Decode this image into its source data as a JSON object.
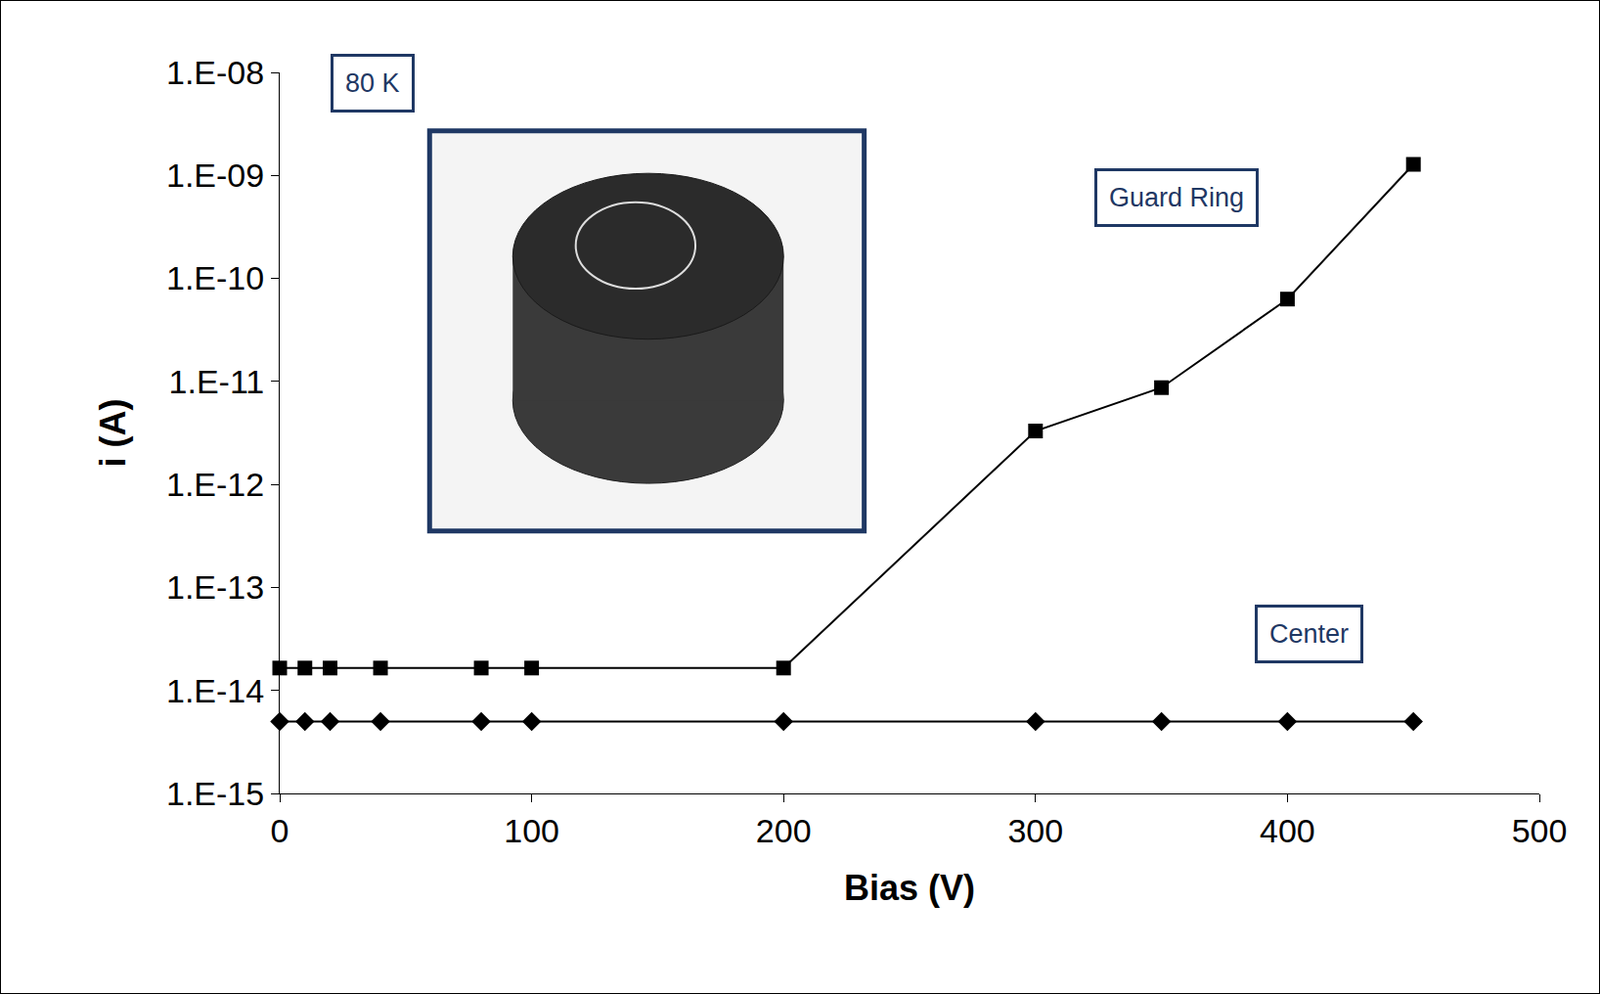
{
  "chart_data": {
    "type": "line",
    "annotations": [
      "80 K"
    ],
    "x_label": "Bias (V)",
    "y_label": "i (A)",
    "x": [
      0,
      10,
      20,
      40,
      80,
      100,
      200,
      300,
      350,
      400,
      450
    ],
    "series": [
      {
        "name": "Guard Ring",
        "color": "#000000",
        "marker": "square",
        "values": [
          1.65e-14,
          1.65e-14,
          1.65e-14,
          1.65e-14,
          1.65e-14,
          1.65e-14,
          1.65e-14,
          3.3e-12,
          8.7e-12,
          6.3e-11,
          1.28e-09
        ]
      },
      {
        "name": "Center",
        "color": "#000000",
        "marker": "diamond",
        "values": [
          5e-15,
          5e-15,
          5e-15,
          5e-15,
          5e-15,
          5e-15,
          5e-15,
          5e-15,
          5e-15,
          5e-15,
          5e-15
        ]
      }
    ],
    "xlim": [
      0,
      500
    ],
    "xticks": [
      0,
      100,
      200,
      300,
      400,
      500
    ],
    "ylim": [
      1e-15,
      1e-08
    ],
    "yticks": [
      {
        "value": 1e-15,
        "label": "1.E-15"
      },
      {
        "value": 1e-14,
        "label": "1.E-14"
      },
      {
        "value": 1e-13,
        "label": "1.E-13"
      },
      {
        "value": 1e-12,
        "label": "1.E-12"
      },
      {
        "value": 1e-11,
        "label": "1.E-11"
      },
      {
        "value": 1e-10,
        "label": "1.E-10"
      },
      {
        "value": 1e-09,
        "label": "1.E-09"
      },
      {
        "value": 1e-08,
        "label": "1.E-08"
      }
    ],
    "log": "y",
    "grid": false
  }
}
